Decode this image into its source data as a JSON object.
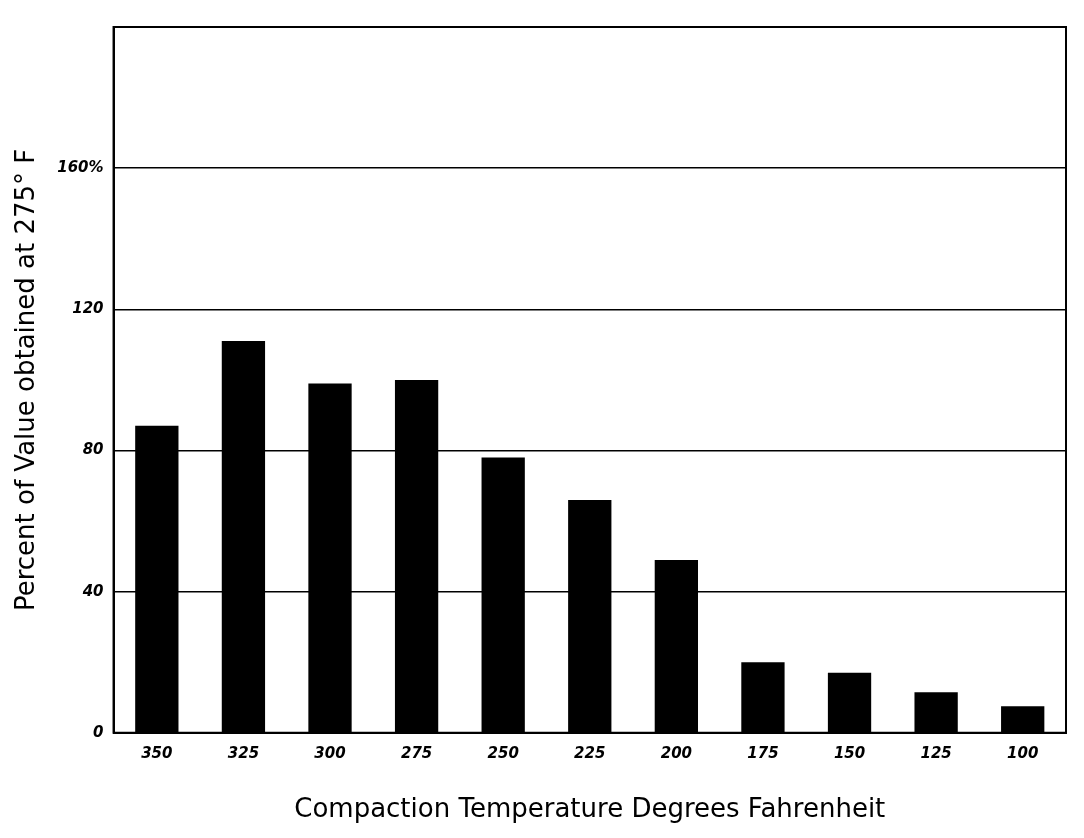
{
  "chart_data": {
    "type": "bar",
    "xlabel": "Compaction Temperature Degrees Fahrenheit",
    "ylabel": "Percent of Value obtained at 275° F",
    "categories": [
      "350",
      "325",
      "300",
      "275",
      "250",
      "225",
      "200",
      "175",
      "150",
      "125",
      "100"
    ],
    "values": [
      87,
      111,
      99,
      100,
      78,
      66,
      49,
      20,
      17,
      11.5,
      7.5
    ],
    "color": "#000000",
    "ylim": [
      0,
      200
    ],
    "yticks": [
      0,
      40,
      80,
      120,
      {
        "value": 160,
        "label": "160%"
      }
    ],
    "grid": "y",
    "legend": false
  }
}
